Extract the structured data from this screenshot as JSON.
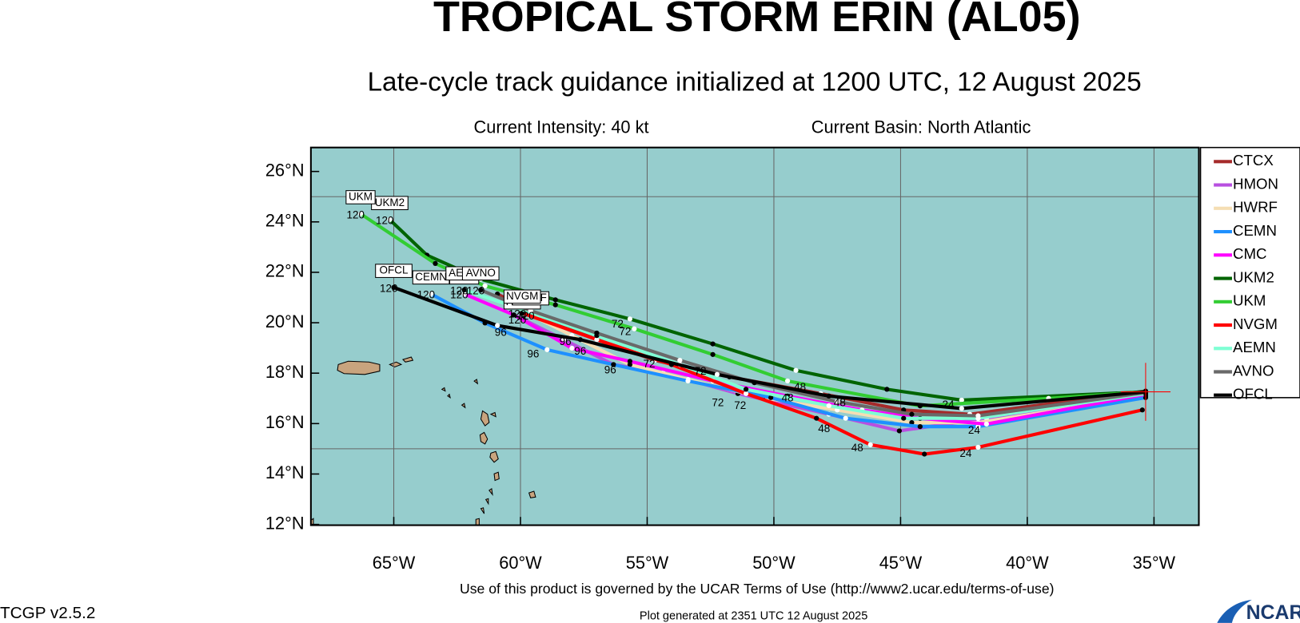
{
  "header": {
    "title": "TROPICAL STORM ERIN (AL05)",
    "subtitle": "Late-cycle track guidance initialized at 1200 UTC, 12 August 2025",
    "intensity": "Current Intensity: 40 kt",
    "basin": "Current Basin: North Atlantic"
  },
  "map": {
    "xlim": [
      -68.27,
      -33.23
    ],
    "ylim": [
      11.97,
      26.95
    ],
    "xticks": [
      {
        "value": -65,
        "label": "65°W"
      },
      {
        "value": -60,
        "label": "60°W"
      },
      {
        "value": -55,
        "label": "55°W"
      },
      {
        "value": -50,
        "label": "50°W"
      },
      {
        "value": -45,
        "label": "45°W"
      },
      {
        "value": -40,
        "label": "40°W"
      },
      {
        "value": -35,
        "label": "35°W"
      }
    ],
    "yticks": [
      {
        "value": 12,
        "label": "12°N"
      },
      {
        "value": 14,
        "label": "14°N"
      },
      {
        "value": 16,
        "label": "16°N"
      },
      {
        "value": 18,
        "label": "18°N"
      },
      {
        "value": 20,
        "label": "20°N"
      },
      {
        "value": 22,
        "label": "22°N"
      },
      {
        "value": 24,
        "label": "24°N"
      },
      {
        "value": 26,
        "label": "26°N"
      }
    ],
    "ygrid": [
      15,
      25
    ],
    "current_position": {
      "lon": -35.33,
      "lat": 17.26
    },
    "tracks": [
      {
        "name": "CTCX",
        "color": "#a52a2a",
        "box": false,
        "lon": [
          -35.33,
          -42.27,
          -44.88,
          -48.15,
          -51.75,
          -54.7,
          -56.99,
          -59.28,
          -60.91
        ],
        "lat": [
          17.29,
          16.37,
          16.54,
          17.19,
          17.85,
          18.51,
          19.33,
          20.31,
          21.14
        ]
      },
      {
        "name": "HMON",
        "color": "#b84fe0",
        "box": true,
        "end_hour": 120,
        "lon": [
          -35.33,
          -41.61,
          -45.05,
          -47.83,
          -51.42,
          -54.37,
          -56.33,
          -58.29,
          -59.93
        ],
        "lat": [
          17.09,
          16.21,
          15.71,
          16.37,
          17.19,
          18.01,
          18.34,
          19.33,
          20.15
        ]
      },
      {
        "name": "HWRF",
        "color": "#f5deb3",
        "box": true,
        "end_hour": 120,
        "lon": [
          -35.33,
          -41.94,
          -44.56,
          -47.5,
          -50.44,
          -53.39,
          -55.68,
          -57.97,
          -59.6
        ],
        "lat": [
          17.09,
          16.04,
          16.04,
          16.54,
          17.03,
          17.75,
          18.34,
          19.49,
          20.31
        ]
      },
      {
        "name": "CEMN",
        "color": "#1e90ff",
        "box": true,
        "end_hour": 120,
        "lon": [
          -35.33,
          -41.94,
          -44.23,
          -47.17,
          -50.12,
          -53.39,
          -56.33,
          -58.95,
          -61.4,
          -63.53
        ],
        "lat": [
          17.03,
          15.88,
          15.88,
          16.21,
          17.03,
          17.69,
          18.34,
          18.93,
          19.99,
          21.14
        ]
      },
      {
        "name": "CMC",
        "color": "#ff00ff",
        "box": true,
        "end_hour": 120,
        "lon": [
          -35.33,
          -41.61,
          -44.23,
          -46.52,
          -49.46,
          -52.41,
          -55.68,
          -57.97,
          -60.26,
          -62.22
        ],
        "lat": [
          17.16,
          15.98,
          16.21,
          16.54,
          17.09,
          17.69,
          18.47,
          18.99,
          20.31,
          21.14
        ]
      },
      {
        "name": "UKM2",
        "color": "#006400",
        "box": true,
        "end_hour": 120,
        "lon": [
          -35.33,
          -42.59,
          -45.54,
          -49.13,
          -52.41,
          -55.68,
          -58.62,
          -61.57,
          -63.69,
          -65.16
        ],
        "lat": [
          17.26,
          16.93,
          17.36,
          18.11,
          19.16,
          20.15,
          20.91,
          21.73,
          22.68,
          24.09
        ]
      },
      {
        "name": "UKM",
        "color": "#32cd32",
        "box": true,
        "end_hour": 120,
        "lon": [
          -35.33,
          -39.16,
          -44.23,
          -49.46,
          -52.41,
          -55.51,
          -58.62,
          -61.4,
          -63.36,
          -66.31
        ],
        "lat": [
          17.26,
          17.0,
          16.7,
          17.69,
          18.74,
          19.76,
          20.71,
          21.46,
          22.35,
          24.32
        ]
      },
      {
        "name": "NVGM",
        "color": "#ff0000",
        "box": true,
        "end_hour": 120,
        "lon": [
          -35.46,
          -41.94,
          -44.06,
          -46.19,
          -48.32,
          -51.1,
          -54.04,
          -56.99,
          -59.93
        ],
        "lat": [
          16.54,
          15.06,
          14.79,
          15.16,
          16.21,
          17.19,
          18.34,
          19.33,
          20.38
        ]
      },
      {
        "name": "AEMN",
        "color": "#7fffd4",
        "box": true,
        "end_hour": 120,
        "lon": [
          -35.33,
          -41.94,
          -44.88,
          -47.83,
          -51.1,
          -53.71,
          -56.99,
          -60.26,
          -62.22
        ],
        "lat": [
          17.19,
          16.21,
          16.21,
          16.71,
          17.36,
          18.34,
          19.49,
          20.64,
          21.3
        ]
      },
      {
        "name": "AVNO",
        "color": "#696969",
        "box": true,
        "end_hour": 120,
        "lon": [
          -35.33,
          -41.94,
          -44.56,
          -47.5,
          -50.77,
          -53.71,
          -56.99,
          -59.6,
          -61.57
        ],
        "lat": [
          17.23,
          16.31,
          16.37,
          16.87,
          17.62,
          18.51,
          19.59,
          20.48,
          21.3
        ]
      },
      {
        "name": "OFCL",
        "color": "#000000",
        "box": true,
        "end_hour": 120,
        "lon": [
          -35.33,
          -42.59,
          -47.83,
          -52.24,
          -57.64,
          -60.91,
          -65.0
        ],
        "lat": [
          17.26,
          16.6,
          17.09,
          17.95,
          19.33,
          19.89,
          21.4
        ]
      }
    ],
    "hour_labels": [
      {
        "text": 24,
        "lon": -43.12,
        "lat": 16.73
      },
      {
        "text": 24,
        "lon": -42.43,
        "lat": 14.79
      },
      {
        "text": 24,
        "lon": -42.1,
        "lat": 15.71
      },
      {
        "text": 48,
        "lon": -49.46,
        "lat": 17.0
      },
      {
        "text": 48,
        "lon": -48.97,
        "lat": 17.42
      },
      {
        "text": 48,
        "lon": -47.4,
        "lat": 16.8
      },
      {
        "text": 48,
        "lon": -48.02,
        "lat": 15.78
      },
      {
        "text": 48,
        "lon": -46.71,
        "lat": 15.02
      },
      {
        "text": 72,
        "lon": -56.17,
        "lat": 19.92
      },
      {
        "text": 72,
        "lon": -55.87,
        "lat": 19.62
      },
      {
        "text": 72,
        "lon": -54.92,
        "lat": 18.34
      },
      {
        "text": 72,
        "lon": -52.9,
        "lat": 18.05
      },
      {
        "text": 72,
        "lon": -52.21,
        "lat": 16.8
      },
      {
        "text": 72,
        "lon": -51.33,
        "lat": 16.7
      },
      {
        "text": 96,
        "lon": -60.78,
        "lat": 19.59
      },
      {
        "text": 96,
        "lon": -59.5,
        "lat": 18.74
      },
      {
        "text": 96,
        "lon": -57.64,
        "lat": 18.84
      },
      {
        "text": 96,
        "lon": -56.46,
        "lat": 18.11
      },
      {
        "text": 96,
        "lon": -58.23,
        "lat": 19.23
      }
    ]
  },
  "footer": {
    "terms": "Use of this product is governed by the UCAR Terms of Use (http://www2.ucar.edu/terms-of-use)",
    "version": "TCGP v2.5.2",
    "generated": "Plot generated at 2351 UTC   12 August 2025",
    "logo": "NCAR"
  }
}
